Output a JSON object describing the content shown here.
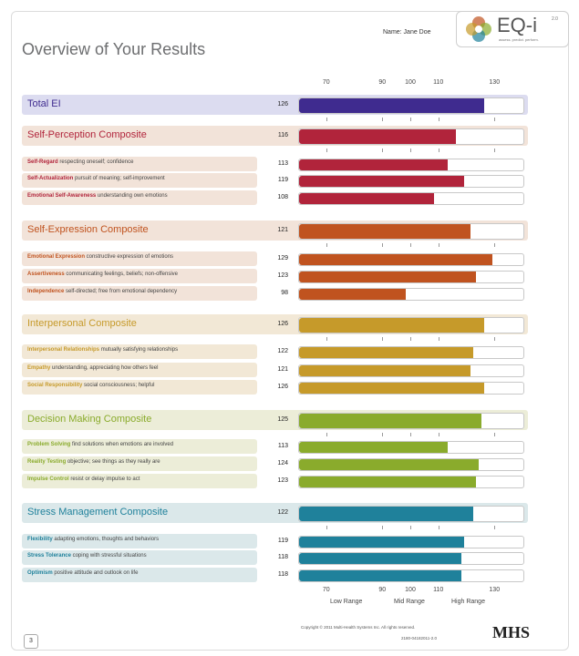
{
  "header": {
    "title": "Overview of Your Results",
    "name": "Name: Jane Doe",
    "logo_text": "EQ-i",
    "logo_version": "2.0",
    "logo_tagline": "assess. predict. perform."
  },
  "footer": {
    "copyright": "Copyright © 2011 Multi-Health Systems Inc. All rights reserved.",
    "code": "2180-04182011-2.0",
    "mhs": "MHS",
    "page": "3"
  },
  "chart_data": {
    "type": "bar",
    "orientation": "horizontal",
    "x_ticks": [
      70,
      90,
      100,
      110,
      130
    ],
    "xlim": [
      60,
      140
    ],
    "ranges": [
      "Low Range",
      "Mid Range",
      "High Range"
    ],
    "rows": [
      {
        "kind": "total",
        "label": "Total EI",
        "desc": "",
        "value": 126,
        "color": "#3f2b8f",
        "bg": "#dcdcf0"
      },
      {
        "kind": "composite",
        "label": "Self-Perception Composite",
        "desc": "",
        "value": 116,
        "color": "#b1243b",
        "bg": "#f2e3d9"
      },
      {
        "kind": "sub",
        "label": "Self-Regard",
        "desc": "respecting oneself; confidence",
        "value": 113,
        "color": "#b1243b",
        "bg": "#f2e3d9"
      },
      {
        "kind": "sub",
        "label": "Self-Actualization",
        "desc": "pursuit of meaning; self-improvement",
        "value": 119,
        "color": "#b1243b",
        "bg": "#f2e3d9"
      },
      {
        "kind": "sub",
        "label": "Emotional Self-Awareness",
        "desc": "understanding own emotions",
        "value": 108,
        "color": "#b1243b",
        "bg": "#f2e3d9"
      },
      {
        "kind": "composite",
        "label": "Self-Expression Composite",
        "desc": "",
        "value": 121,
        "color": "#c0531f",
        "bg": "#f2e3d9"
      },
      {
        "kind": "sub",
        "label": "Emotional Expression",
        "desc": "constructive expression of emotions",
        "value": 129,
        "color": "#c0531f",
        "bg": "#f2e3d9"
      },
      {
        "kind": "sub",
        "label": "Assertiveness",
        "desc": "communicating feelings, beliefs; non-offensive",
        "value": 123,
        "color": "#c0531f",
        "bg": "#f2e3d9"
      },
      {
        "kind": "sub",
        "label": "Independence",
        "desc": "self-directed; free from emotional dependency",
        "value": 98,
        "color": "#c0531f",
        "bg": "#f2e3d9"
      },
      {
        "kind": "composite",
        "label": "Interpersonal Composite",
        "desc": "",
        "value": 126,
        "color": "#c69a2a",
        "bg": "#f2e8d6"
      },
      {
        "kind": "sub",
        "label": "Interpersonal Relationships",
        "desc": "mutually satisfying relationships",
        "value": 122,
        "color": "#c69a2a",
        "bg": "#f2e8d6"
      },
      {
        "kind": "sub",
        "label": "Empathy",
        "desc": "understanding, appreciating how others feel",
        "value": 121,
        "color": "#c69a2a",
        "bg": "#f2e8d6"
      },
      {
        "kind": "sub",
        "label": "Social Responsibility",
        "desc": "social consciousness; helpful",
        "value": 126,
        "color": "#c69a2a",
        "bg": "#f2e8d6"
      },
      {
        "kind": "composite",
        "label": "Decision Making Composite",
        "desc": "",
        "value": 125,
        "color": "#8aab2c",
        "bg": "#ecedd8"
      },
      {
        "kind": "sub",
        "label": "Problem Solving",
        "desc": "find solutions when emotions are involved",
        "value": 113,
        "color": "#8aab2c",
        "bg": "#ecedd8"
      },
      {
        "kind": "sub",
        "label": "Reality Testing",
        "desc": "objective; see things as they really are",
        "value": 124,
        "color": "#8aab2c",
        "bg": "#ecedd8"
      },
      {
        "kind": "sub",
        "label": "Impulse Control",
        "desc": "resist or delay impulse to act",
        "value": 123,
        "color": "#8aab2c",
        "bg": "#ecedd8"
      },
      {
        "kind": "composite",
        "label": "Stress Management Composite",
        "desc": "",
        "value": 122,
        "color": "#1f819b",
        "bg": "#dbe8ea"
      },
      {
        "kind": "sub",
        "label": "Flexibility",
        "desc": "adapting emotions, thoughts and behaviors",
        "value": 119,
        "color": "#1f819b",
        "bg": "#dbe8ea"
      },
      {
        "kind": "sub",
        "label": "Stress Tolerance",
        "desc": "coping with stressful situations",
        "value": 118,
        "color": "#1f819b",
        "bg": "#dbe8ea"
      },
      {
        "kind": "sub",
        "label": "Optimism",
        "desc": "positive attitude and outlook on life",
        "value": 118,
        "color": "#1f819b",
        "bg": "#dbe8ea"
      }
    ]
  }
}
